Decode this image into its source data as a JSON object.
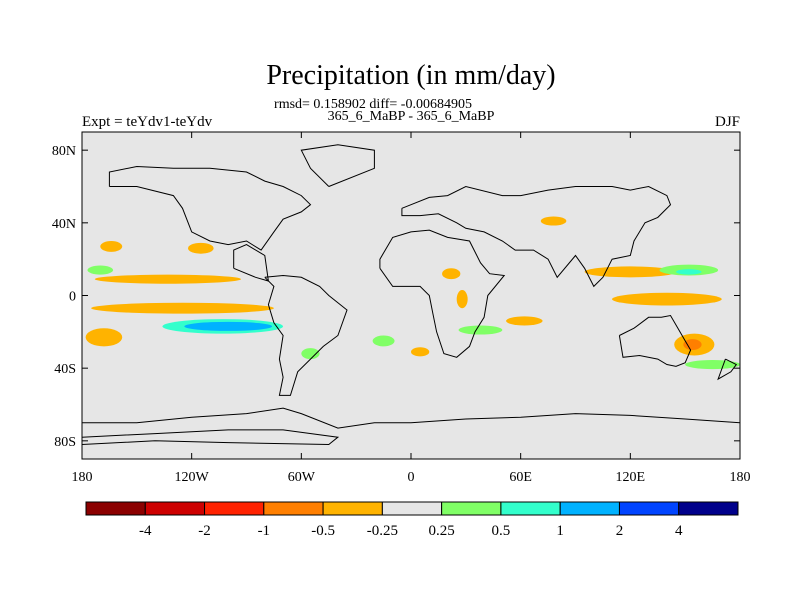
{
  "chart_data": {
    "type": "contour-map",
    "title": "Precipitation (in mm/day)",
    "stats": "rmsd= 0.158902 diff= -0.00684905",
    "subtitle": "365_6_MaBP - 365_6_MaBP",
    "left_label": "Expt = teYdv1-teYdv",
    "right_label": "DJF",
    "x_axis": {
      "range": [
        -180,
        180
      ],
      "ticks": [
        {
          "value": -180,
          "label": "180"
        },
        {
          "value": -120,
          "label": "120W"
        },
        {
          "value": -60,
          "label": "60W"
        },
        {
          "value": 0,
          "label": "0"
        },
        {
          "value": 60,
          "label": "60E"
        },
        {
          "value": 120,
          "label": "120E"
        },
        {
          "value": 180,
          "label": "180"
        }
      ]
    },
    "y_axis": {
      "range": [
        -90,
        90
      ],
      "ticks": [
        {
          "value": 80,
          "label": "80N"
        },
        {
          "value": 40,
          "label": "40N"
        },
        {
          "value": 0,
          "label": "0"
        },
        {
          "value": -40,
          "label": "40S"
        },
        {
          "value": -80,
          "label": "80S"
        }
      ]
    },
    "colorbar": {
      "colors": [
        "#8b0000",
        "#cd0000",
        "#ff2200",
        "#ff7f00",
        "#ffb300",
        "#e6e6e6",
        "#80ff66",
        "#33ffcc",
        "#00b2ff",
        "#0044ff",
        "#00008b"
      ],
      "labels": [
        "-4",
        "-2",
        "-1",
        "-0.5",
        "-0.25",
        "0.25",
        "0.5",
        "1",
        "2",
        "4"
      ]
    },
    "fields": [
      {
        "name": "tropical-pacific-band-north",
        "lon": -133,
        "lat": 9,
        "rx": 40,
        "ry": 2.5,
        "class": "-0.25"
      },
      {
        "name": "tropical-pacific-band-south",
        "lon": -125,
        "lat": -7,
        "rx": 50,
        "ry": 3,
        "class": "-0.25"
      },
      {
        "name": "south-pacific-wet-core",
        "lon": -103,
        "lat": -17,
        "rx": 33,
        "ry": 4,
        "class": "0.5"
      },
      {
        "name": "south-pacific-wet-max",
        "lon": -100,
        "lat": -17,
        "rx": 24,
        "ry": 2.5,
        "class": "1"
      },
      {
        "name": "south-pacific-dry-west",
        "lon": -168,
        "lat": -23,
        "rx": 10,
        "ry": 5,
        "class": "-0.25"
      },
      {
        "name": "north-pacific-dry",
        "lon": -164,
        "lat": 27,
        "rx": 6,
        "ry": 3,
        "class": "-0.25"
      },
      {
        "name": "north-pacific-dry-2",
        "lon": -115,
        "lat": 26,
        "rx": 7,
        "ry": 3,
        "class": "-0.25"
      },
      {
        "name": "north-pacific-wet-west",
        "lon": -170,
        "lat": 14,
        "rx": 7,
        "ry": 2.5,
        "class": "0.25"
      },
      {
        "name": "atlantic-dry",
        "lon": 22,
        "lat": 12,
        "rx": 5,
        "ry": 3,
        "class": "-0.25"
      },
      {
        "name": "africa-dry",
        "lon": 28,
        "lat": -2,
        "rx": 3,
        "ry": 5,
        "class": "-0.25"
      },
      {
        "name": "indian-ocean-wet",
        "lon": 38,
        "lat": -19,
        "rx": 12,
        "ry": 2.5,
        "class": "0.25"
      },
      {
        "name": "south-atlantic-wet",
        "lon": -15,
        "lat": -25,
        "rx": 6,
        "ry": 3,
        "class": "0.25"
      },
      {
        "name": "indian-ocean-dry",
        "lon": 62,
        "lat": -14,
        "rx": 10,
        "ry": 2.5,
        "class": "-0.25"
      },
      {
        "name": "west-pacific-dry",
        "lon": 140,
        "lat": -2,
        "rx": 30,
        "ry": 3.5,
        "class": "-0.25"
      },
      {
        "name": "west-pacific-dry-north",
        "lon": 120,
        "lat": 13,
        "rx": 25,
        "ry": 3,
        "class": "-0.25"
      },
      {
        "name": "north-west-pacific-wet",
        "lon": 152,
        "lat": 14,
        "rx": 16,
        "ry": 3,
        "class": "0.25"
      },
      {
        "name": "north-west-pacific-wet-core",
        "lon": 152,
        "lat": 13,
        "rx": 7,
        "ry": 1.5,
        "class": "0.5"
      },
      {
        "name": "south-west-pacific-dry",
        "lon": 155,
        "lat": -27,
        "rx": 11,
        "ry": 6,
        "class": "-0.25"
      },
      {
        "name": "south-west-pacific-dry-core",
        "lon": 154,
        "lat": -27,
        "rx": 5,
        "ry": 3,
        "class": "-0.5"
      },
      {
        "name": "southern-ocean-wet",
        "lon": 165,
        "lat": -38,
        "rx": 15,
        "ry": 2.5,
        "class": "0.25"
      },
      {
        "name": "siberia-dry",
        "lon": 78,
        "lat": 41,
        "rx": 7,
        "ry": 2.5,
        "class": "-0.25"
      },
      {
        "name": "caribbean-wet",
        "lon": -55,
        "lat": -32,
        "rx": 5,
        "ry": 3,
        "class": "0.25"
      },
      {
        "name": "atlantic-dry-south",
        "lon": 5,
        "lat": -31,
        "rx": 5,
        "ry": 2.5,
        "class": "-0.25"
      }
    ],
    "coastlines": [
      [
        [
          -180,
          -70
        ],
        [
          -150,
          -70
        ],
        [
          -120,
          -67
        ],
        [
          -90,
          -65
        ],
        [
          -70,
          -62
        ],
        [
          -60,
          -65
        ],
        [
          -40,
          -73
        ],
        [
          -20,
          -70
        ],
        [
          0,
          -70
        ],
        [
          30,
          -68
        ],
        [
          60,
          -67
        ],
        [
          90,
          -65
        ],
        [
          120,
          -66
        ],
        [
          150,
          -68
        ],
        [
          180,
          -70
        ]
      ],
      [
        [
          -180,
          -78
        ],
        [
          -140,
          -76
        ],
        [
          -100,
          -74
        ],
        [
          -70,
          -74
        ],
        [
          -40,
          -78
        ],
        [
          -45,
          -82
        ],
        [
          -100,
          -81
        ],
        [
          -140,
          -80
        ],
        [
          -180,
          -82
        ]
      ],
      [
        [
          -80,
          10
        ],
        [
          -75,
          5
        ],
        [
          -78,
          -5
        ],
        [
          -75,
          -15
        ],
        [
          -70,
          -22
        ],
        [
          -72,
          -35
        ],
        [
          -70,
          -45
        ],
        [
          -72,
          -55
        ],
        [
          -66,
          -55
        ],
        [
          -62,
          -42
        ],
        [
          -55,
          -35
        ],
        [
          -48,
          -28
        ],
        [
          -40,
          -22
        ],
        [
          -35,
          -8
        ],
        [
          -45,
          0
        ],
        [
          -50,
          5
        ],
        [
          -60,
          10
        ],
        [
          -70,
          11
        ],
        [
          -80,
          10
        ]
      ],
      [
        [
          -97,
          15
        ],
        [
          -85,
          10
        ],
        [
          -78,
          8
        ],
        [
          -80,
          22
        ],
        [
          -90,
          28
        ],
        [
          -97,
          25
        ],
        [
          -97,
          15
        ]
      ],
      [
        [
          -17,
          15
        ],
        [
          -10,
          5
        ],
        [
          5,
          5
        ],
        [
          10,
          0
        ],
        [
          12,
          -10
        ],
        [
          14,
          -20
        ],
        [
          18,
          -32
        ],
        [
          25,
          -34
        ],
        [
          32,
          -28
        ],
        [
          35,
          -20
        ],
        [
          40,
          -12
        ],
        [
          42,
          0
        ],
        [
          51,
          11
        ],
        [
          43,
          12
        ],
        [
          38,
          18
        ],
        [
          32,
          30
        ],
        [
          20,
          32
        ],
        [
          10,
          36
        ],
        [
          0,
          35
        ],
        [
          -10,
          32
        ],
        [
          -17,
          20
        ],
        [
          -17,
          15
        ]
      ],
      [
        [
          -5,
          48
        ],
        [
          0,
          50
        ],
        [
          10,
          54
        ],
        [
          20,
          55
        ],
        [
          30,
          60
        ],
        [
          50,
          55
        ],
        [
          60,
          55
        ],
        [
          75,
          58
        ],
        [
          90,
          60
        ],
        [
          110,
          60
        ],
        [
          120,
          58
        ],
        [
          130,
          60
        ],
        [
          140,
          55
        ],
        [
          142,
          50
        ],
        [
          135,
          43
        ],
        [
          128,
          40
        ],
        [
          122,
          30
        ],
        [
          120,
          22
        ],
        [
          110,
          20
        ],
        [
          105,
          10
        ],
        [
          100,
          5
        ],
        [
          95,
          15
        ],
        [
          90,
          22
        ],
        [
          80,
          10
        ],
        [
          75,
          20
        ],
        [
          67,
          25
        ],
        [
          57,
          25
        ],
        [
          50,
          30
        ],
        [
          40,
          35
        ],
        [
          30,
          37
        ],
        [
          25,
          40
        ],
        [
          15,
          45
        ],
        [
          5,
          44
        ],
        [
          -5,
          44
        ],
        [
          -5,
          48
        ]
      ],
      [
        [
          114,
          -22
        ],
        [
          122,
          -18
        ],
        [
          130,
          -12
        ],
        [
          137,
          -12
        ],
        [
          142,
          -11
        ],
        [
          146,
          -18
        ],
        [
          150,
          -25
        ],
        [
          153,
          -30
        ],
        [
          150,
          -37
        ],
        [
          145,
          -39
        ],
        [
          140,
          -38
        ],
        [
          135,
          -35
        ],
        [
          125,
          -33
        ],
        [
          116,
          -34
        ],
        [
          114,
          -22
        ]
      ],
      [
        [
          -45,
          60
        ],
        [
          -20,
          70
        ],
        [
          -20,
          80
        ],
        [
          -40,
          83
        ],
        [
          -60,
          80
        ],
        [
          -55,
          70
        ],
        [
          -45,
          60
        ]
      ],
      [
        [
          -165,
          60
        ],
        [
          -150,
          60
        ],
        [
          -130,
          55
        ],
        [
          -125,
          48
        ],
        [
          -120,
          35
        ],
        [
          -110,
          30
        ],
        [
          -100,
          28
        ],
        [
          -90,
          30
        ],
        [
          -82,
          25
        ],
        [
          -75,
          35
        ],
        [
          -70,
          42
        ],
        [
          -60,
          46
        ],
        [
          -55,
          50
        ],
        [
          -60,
          55
        ],
        [
          -70,
          60
        ],
        [
          -80,
          63
        ],
        [
          -90,
          68
        ],
        [
          -110,
          70
        ],
        [
          -130,
          70
        ],
        [
          -150,
          71
        ],
        [
          -165,
          68
        ],
        [
          -165,
          60
        ]
      ],
      [
        [
          172,
          -35
        ],
        [
          178,
          -38
        ],
        [
          175,
          -42
        ],
        [
          168,
          -46
        ],
        [
          172,
          -35
        ]
      ]
    ]
  }
}
